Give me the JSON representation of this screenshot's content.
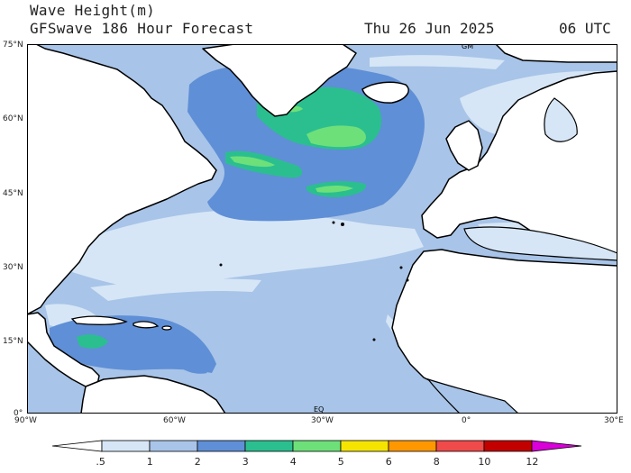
{
  "header": {
    "line1": "Wave Height(m)",
    "line2": "GFSwave 186 Hour Forecast",
    "date": "Thu 26 Jun 2025",
    "time": "06 UTC"
  },
  "axes": {
    "lat_labels": [
      "75°N",
      "60°N",
      "45°N",
      "30°N",
      "15°N",
      "0°"
    ],
    "lon_labels": [
      "90°W",
      "60°W",
      "30°W",
      "0°",
      "30°E"
    ]
  },
  "map_marks": {
    "gm": "GM",
    "eq": "EQ"
  },
  "legend": {
    "labels": [
      ".5",
      "1",
      "2",
      "3",
      "4",
      "5",
      "6",
      "8",
      "10",
      "12"
    ],
    "colors": [
      "#ffffff",
      "#d6e6f6",
      "#a8c4e8",
      "#5f8fd6",
      "#2bbf8f",
      "#6ee07a",
      "#f5e400",
      "#ff9800",
      "#f04a4a",
      "#c30000",
      "#d900d9"
    ]
  },
  "colors": {
    "ocean_base": "#a8c4e8",
    "calm": "#d6e6f6",
    "moderate": "#5f8fd6",
    "rough": "#2bbf8f",
    "very_rough": "#6ee07a",
    "land": "#ffffff",
    "coast": "#000000"
  }
}
